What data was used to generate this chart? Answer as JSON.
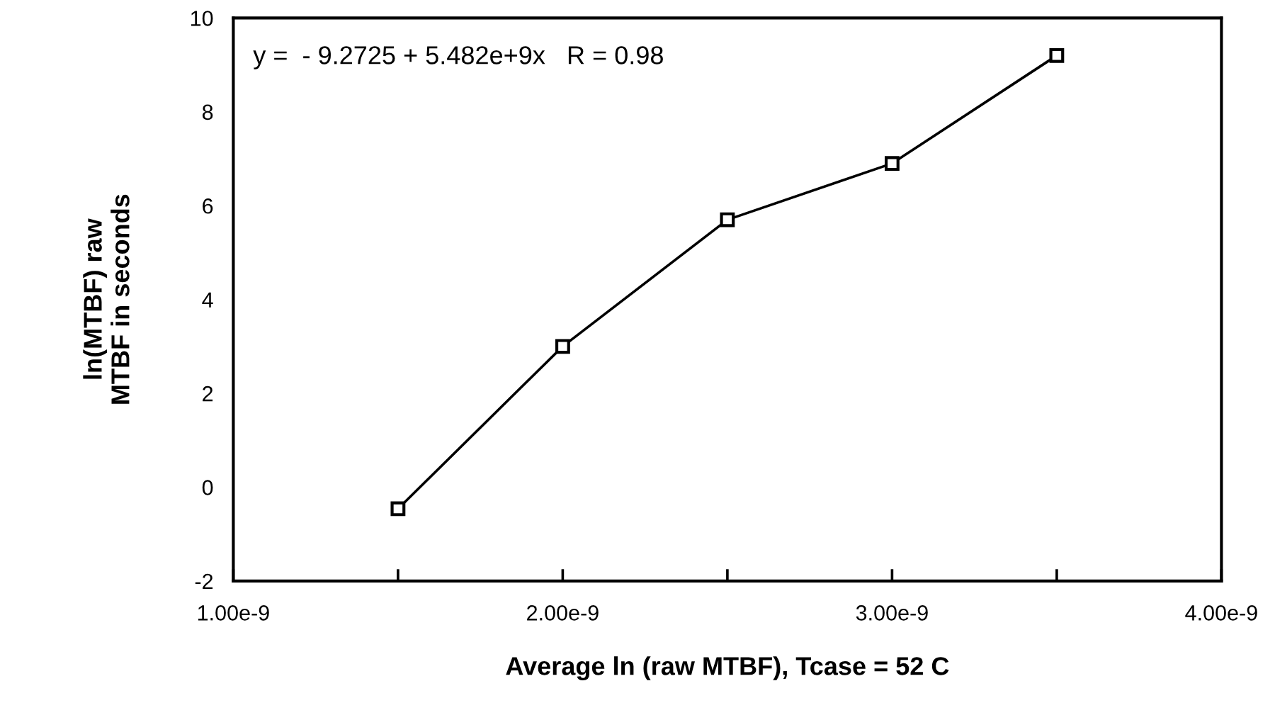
{
  "chart_data": {
    "type": "line",
    "xlabel": "Average ln (raw MTBF), Tcase = 52 C",
    "ylabel": "ln(MTBF) raw\nMTBF in seconds",
    "x": [
      1.5e-09,
      2e-09,
      2.5e-09,
      3e-09,
      3.5e-09
    ],
    "series": [
      {
        "color": "#000000",
        "values": [
          -0.46,
          3.0,
          5.7,
          6.9,
          9.2
        ]
      }
    ],
    "marker": "square",
    "line_style": "solid",
    "xlim": [
      1e-09,
      4e-09
    ],
    "xticks": [
      {
        "value": 1e-09,
        "label": "1.00e-9"
      },
      {
        "value": 1.5e-09,
        "label": null
      },
      {
        "value": 2e-09,
        "label": "2.00e-9"
      },
      {
        "value": 2.5e-09,
        "label": null
      },
      {
        "value": 3e-09,
        "label": "3.00e-9"
      },
      {
        "value": 3.5e-09,
        "label": null
      },
      {
        "value": 4e-09,
        "label": "4.00e-9"
      }
    ],
    "ylim": [
      -2,
      10
    ],
    "yticks": [
      -2,
      0,
      2,
      4,
      6,
      8,
      10
    ],
    "annotations": [
      "y =  - 9.2725 + 5.482e+9x   R = 0.98"
    ],
    "grid": false,
    "legend": false
  }
}
